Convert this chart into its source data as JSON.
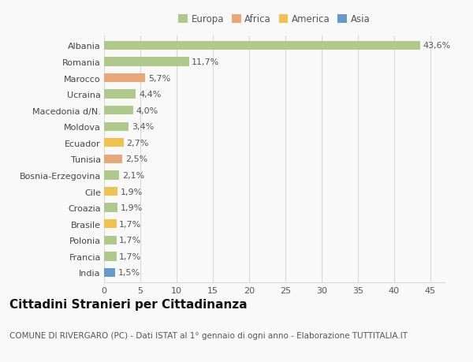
{
  "categories": [
    "Albania",
    "Romania",
    "Marocco",
    "Ucraina",
    "Macedonia d/N.",
    "Moldova",
    "Ecuador",
    "Tunisia",
    "Bosnia-Erzegovina",
    "Cile",
    "Croazia",
    "Brasile",
    "Polonia",
    "Francia",
    "India"
  ],
  "values": [
    43.6,
    11.7,
    5.7,
    4.4,
    4.0,
    3.4,
    2.7,
    2.5,
    2.1,
    1.9,
    1.9,
    1.7,
    1.7,
    1.7,
    1.5
  ],
  "labels": [
    "43,6%",
    "11,7%",
    "5,7%",
    "4,4%",
    "4,0%",
    "3,4%",
    "2,7%",
    "2,5%",
    "2,1%",
    "1,9%",
    "1,9%",
    "1,7%",
    "1,7%",
    "1,7%",
    "1,5%"
  ],
  "continent": [
    "Europa",
    "Europa",
    "Africa",
    "Europa",
    "Europa",
    "Europa",
    "America",
    "Africa",
    "Europa",
    "America",
    "Europa",
    "America",
    "Europa",
    "Europa",
    "Asia"
  ],
  "colors": {
    "Europa": "#aec98a",
    "Africa": "#e8a878",
    "America": "#f0c050",
    "Asia": "#6699cc"
  },
  "legend_labels": [
    "Europa",
    "Africa",
    "America",
    "Asia"
  ],
  "legend_colors": [
    "#aec98a",
    "#e8a878",
    "#f0c050",
    "#6699cc"
  ],
  "xlim": [
    0,
    47
  ],
  "xticks": [
    0,
    5,
    10,
    15,
    20,
    25,
    30,
    35,
    40,
    45
  ],
  "title": "Cittadini Stranieri per Cittadinanza",
  "subtitle": "COMUNE DI RIVERGARO (PC) - Dati ISTAT al 1° gennaio di ogni anno - Elaborazione TUTTITALIA.IT",
  "background_color": "#f9f9f9",
  "grid_color": "#d8d8d8",
  "bar_height": 0.55,
  "label_fontsize": 8,
  "tick_fontsize": 8,
  "title_fontsize": 11,
  "subtitle_fontsize": 7.5
}
